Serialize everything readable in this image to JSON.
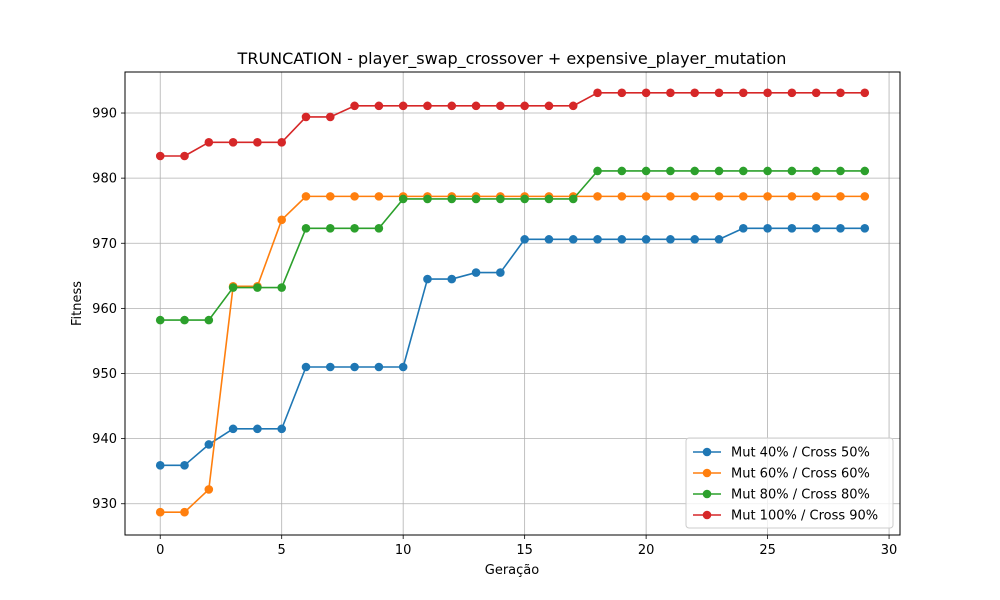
{
  "chart_data": {
    "type": "line",
    "title": "TRUNCATION - player_swap_crossover + expensive_player_mutation",
    "xlabel": "Geração",
    "ylabel": "Fitness",
    "xlim": [
      -1.45,
      30.45
    ],
    "ylim": [
      925.2,
      996.3
    ],
    "xticks": [
      0,
      5,
      10,
      15,
      20,
      25,
      30
    ],
    "yticks": [
      930,
      940,
      950,
      960,
      970,
      980,
      990
    ],
    "grid": true,
    "legend_position": "lower-right",
    "x": [
      0,
      1,
      2,
      3,
      4,
      5,
      6,
      7,
      8,
      9,
      10,
      11,
      12,
      13,
      14,
      15,
      16,
      17,
      18,
      19,
      20,
      21,
      22,
      23,
      24,
      25,
      26,
      27,
      28,
      29
    ],
    "series": [
      {
        "name": "Mut 40% / Cross 50%",
        "color": "#1f77b4",
        "values": [
          935.9,
          935.9,
          939.1,
          941.5,
          941.5,
          941.5,
          951.0,
          951.0,
          951.0,
          951.0,
          951.0,
          964.5,
          964.5,
          965.5,
          965.5,
          970.6,
          970.6,
          970.6,
          970.6,
          970.6,
          970.6,
          970.6,
          970.6,
          970.6,
          972.3,
          972.3,
          972.3,
          972.3,
          972.3,
          972.3
        ]
      },
      {
        "name": "Mut 60% / Cross 60%",
        "color": "#ff7f0e",
        "values": [
          928.7,
          928.7,
          932.2,
          963.4,
          963.4,
          973.6,
          977.2,
          977.2,
          977.2,
          977.2,
          977.2,
          977.2,
          977.2,
          977.2,
          977.2,
          977.2,
          977.2,
          977.2,
          977.2,
          977.2,
          977.2,
          977.2,
          977.2,
          977.2,
          977.2,
          977.2,
          977.2,
          977.2,
          977.2,
          977.2
        ]
      },
      {
        "name": "Mut 80% / Cross 80%",
        "color": "#2ca02c",
        "values": [
          958.2,
          958.2,
          958.2,
          963.2,
          963.2,
          963.2,
          972.3,
          972.3,
          972.3,
          972.3,
          976.8,
          976.8,
          976.8,
          976.8,
          976.8,
          976.8,
          976.8,
          976.8,
          981.1,
          981.1,
          981.1,
          981.1,
          981.1,
          981.1,
          981.1,
          981.1,
          981.1,
          981.1,
          981.1,
          981.1
        ]
      },
      {
        "name": "Mut 100% / Cross 90%",
        "color": "#d62728",
        "values": [
          983.4,
          983.4,
          985.5,
          985.5,
          985.5,
          985.5,
          989.4,
          989.4,
          991.1,
          991.1,
          991.1,
          991.1,
          991.1,
          991.1,
          991.1,
          991.1,
          991.1,
          991.1,
          993.1,
          993.1,
          993.1,
          993.1,
          993.1,
          993.1,
          993.1,
          993.1,
          993.1,
          993.1,
          993.1,
          993.1
        ]
      }
    ]
  }
}
